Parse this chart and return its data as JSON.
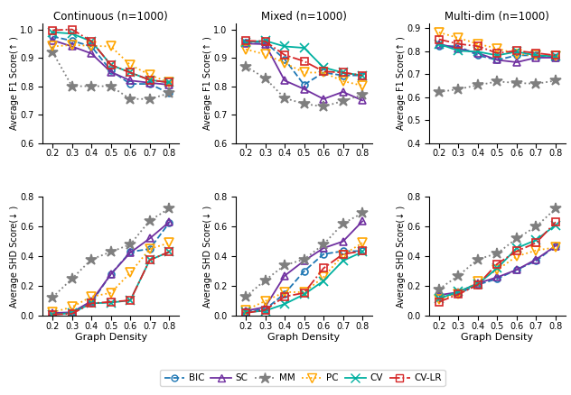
{
  "x": [
    0.2,
    0.3,
    0.4,
    0.5,
    0.6,
    0.7,
    0.8
  ],
  "titles": [
    "Continuous (n=1000)",
    "Mixed (n=1000)",
    "Multi-dim (n=1000)"
  ],
  "ylabel_f1": "Average F1 Score(↑ )",
  "ylabel_shd": "Average SHD Score(↓ )",
  "xlabel": "Graph Density",
  "f1": {
    "continuous": {
      "BIC": [
        0.975,
        0.96,
        0.94,
        0.855,
        0.808,
        0.808,
        0.775
      ],
      "SC": [
        0.962,
        0.94,
        0.915,
        0.85,
        0.82,
        0.812,
        0.805
      ],
      "MM": [
        0.92,
        0.8,
        0.8,
        0.8,
        0.755,
        0.755,
        0.775
      ],
      "PC": [
        0.94,
        0.945,
        0.942,
        0.94,
        0.875,
        0.84,
        0.813
      ],
      "CV": [
        0.99,
        0.985,
        0.958,
        0.875,
        0.848,
        0.822,
        0.813
      ],
      "CV-LR": [
        0.997,
        1.0,
        0.958,
        0.875,
        0.848,
        0.822,
        0.813
      ]
    },
    "mixed": {
      "BIC": [
        0.955,
        0.955,
        0.895,
        0.805,
        0.848,
        0.838,
        0.838
      ],
      "SC": [
        0.95,
        0.948,
        0.82,
        0.79,
        0.755,
        0.78,
        0.75
      ],
      "MM": [
        0.87,
        0.828,
        0.758,
        0.738,
        0.728,
        0.748,
        0.77
      ],
      "PC": [
        0.93,
        0.912,
        0.882,
        0.848,
        0.848,
        0.818,
        0.802
      ],
      "CV": [
        0.955,
        0.96,
        0.94,
        0.935,
        0.866,
        0.848,
        0.838
      ],
      "CV-LR": [
        0.96,
        0.958,
        0.91,
        0.888,
        0.852,
        0.848,
        0.838
      ]
    },
    "multidim": {
      "BIC": [
        0.822,
        0.822,
        0.782,
        0.762,
        0.782,
        0.782,
        0.772
      ],
      "SC": [
        0.832,
        0.812,
        0.792,
        0.762,
        0.752,
        0.772,
        0.772
      ],
      "MM": [
        0.622,
        0.635,
        0.652,
        0.668,
        0.662,
        0.658,
        0.672
      ],
      "PC": [
        0.882,
        0.858,
        0.832,
        0.812,
        0.788,
        0.782,
        0.778
      ],
      "CV": [
        0.832,
        0.802,
        0.798,
        0.782,
        0.798,
        0.782,
        0.778
      ],
      "CV-LR": [
        0.852,
        0.832,
        0.822,
        0.792,
        0.802,
        0.792,
        0.782
      ]
    }
  },
  "shd": {
    "continuous": {
      "BIC": [
        0.015,
        0.02,
        0.09,
        0.28,
        0.43,
        0.45,
        0.625
      ],
      "SC": [
        0.02,
        0.025,
        0.1,
        0.28,
        0.425,
        0.52,
        0.63
      ],
      "MM": [
        0.125,
        0.25,
        0.38,
        0.43,
        0.48,
        0.64,
        0.72
      ],
      "PC": [
        0.025,
        0.06,
        0.13,
        0.155,
        0.29,
        0.45,
        0.49
      ],
      "CV": [
        0.01,
        0.02,
        0.085,
        0.09,
        0.105,
        0.375,
        0.43
      ],
      "CV-LR": [
        0.01,
        0.015,
        0.085,
        0.095,
        0.105,
        0.375,
        0.43
      ]
    },
    "mixed": {
      "BIC": [
        0.03,
        0.045,
        0.15,
        0.3,
        0.415,
        0.435,
        0.435
      ],
      "SC": [
        0.035,
        0.06,
        0.27,
        0.37,
        0.455,
        0.5,
        0.635
      ],
      "MM": [
        0.13,
        0.24,
        0.34,
        0.38,
        0.48,
        0.62,
        0.69
      ],
      "PC": [
        0.04,
        0.1,
        0.16,
        0.16,
        0.26,
        0.41,
        0.49
      ],
      "CV": [
        0.025,
        0.035,
        0.08,
        0.145,
        0.235,
        0.37,
        0.43
      ],
      "CV-LR": [
        0.02,
        0.04,
        0.13,
        0.155,
        0.32,
        0.415,
        0.435
      ]
    },
    "multidim": {
      "BIC": [
        0.13,
        0.15,
        0.21,
        0.25,
        0.31,
        0.37,
        0.47
      ],
      "SC": [
        0.14,
        0.16,
        0.22,
        0.26,
        0.31,
        0.38,
        0.47
      ],
      "MM": [
        0.18,
        0.27,
        0.38,
        0.42,
        0.52,
        0.6,
        0.72
      ],
      "PC": [
        0.11,
        0.15,
        0.23,
        0.31,
        0.4,
        0.44,
        0.46
      ],
      "CV": [
        0.115,
        0.165,
        0.215,
        0.32,
        0.455,
        0.51,
        0.61
      ],
      "CV-LR": [
        0.095,
        0.145,
        0.21,
        0.35,
        0.435,
        0.49,
        0.63
      ]
    }
  },
  "colors": {
    "BIC": "#1f77b4",
    "SC": "#7030a0",
    "MM": "#7f7f7f",
    "PC": "#ffa500",
    "CV": "#00b0a0",
    "CV-LR": "#d62728"
  },
  "linestyles": {
    "BIC": "--",
    "SC": "-",
    "MM": ":",
    "PC": ":",
    "CV": "-",
    "CV-LR": "-."
  },
  "markers": {
    "BIC": "o",
    "SC": "^",
    "MM": "*",
    "PC": "v",
    "CV": "x",
    "CV-LR": "s"
  },
  "markersizes": {
    "BIC": 5,
    "SC": 6,
    "MM": 9,
    "PC": 7,
    "CV": 7,
    "CV-LR": 6
  },
  "markerfilled": {
    "BIC": false,
    "SC": false,
    "MM": true,
    "PC": false,
    "CV": true,
    "CV-LR": false
  },
  "f1_ylims": {
    "continuous": [
      0.6,
      1.02
    ],
    "mixed": [
      0.6,
      1.02
    ],
    "multidim": [
      0.4,
      0.92
    ]
  },
  "shd_ylims": {
    "continuous": [
      0.0,
      0.8
    ],
    "mixed": [
      0.0,
      0.8
    ],
    "multidim": [
      0.0,
      0.8
    ]
  },
  "f1_yticks": {
    "continuous": [
      0.6,
      0.7,
      0.8,
      0.9,
      1.0
    ],
    "mixed": [
      0.6,
      0.7,
      0.8,
      0.9,
      1.0
    ],
    "multidim": [
      0.4,
      0.5,
      0.6,
      0.7,
      0.8,
      0.9
    ]
  },
  "shd_yticks": {
    "continuous": [
      0.0,
      0.2,
      0.4,
      0.6,
      0.8
    ],
    "mixed": [
      0.0,
      0.2,
      0.4,
      0.6,
      0.8
    ],
    "multidim": [
      0.0,
      0.2,
      0.4,
      0.6,
      0.8
    ]
  }
}
